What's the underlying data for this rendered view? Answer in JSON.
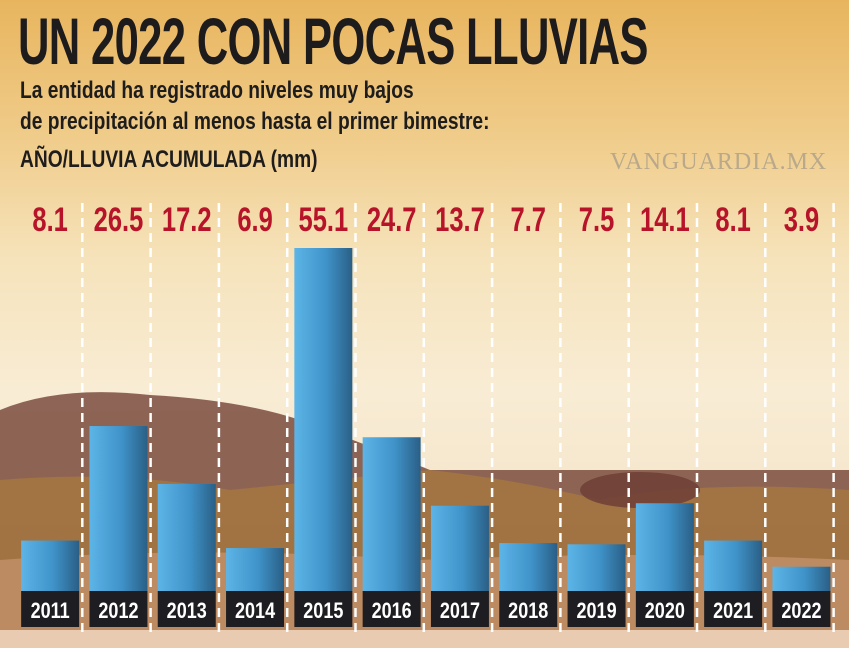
{
  "header": {
    "title": "UN 2022 CON POCAS LLUVIAS",
    "subtitle_line1": "La entidad ha registrado niveles muy bajos",
    "subtitle_line2": "de precipitación al menos hasta el primer bimestre:",
    "unit_label": "AÑO/LLUVIA ACUMULADA (mm)"
  },
  "watermark": "VANGUARDIA.MX",
  "chart_data": {
    "type": "bar",
    "title": "UN 2022 CON POCAS LLUVIAS",
    "ylabel": "AÑO/LLUVIA ACUMULADA (mm)",
    "categories": [
      "2011",
      "2012",
      "2013",
      "2014",
      "2015",
      "2016",
      "2017",
      "2018",
      "2019",
      "2020",
      "2021",
      "2022"
    ],
    "values": [
      8.1,
      26.5,
      17.2,
      6.9,
      55.1,
      24.7,
      13.7,
      7.7,
      7.5,
      14.1,
      8.1,
      3.9
    ],
    "value_labels": [
      "8.1",
      "26.5",
      "17.2",
      "6.9",
      "55.1",
      "24.7",
      "13.7",
      "7.7",
      "7.5",
      "14.1",
      "8.1",
      "3.9"
    ],
    "ylim": [
      0,
      55.1
    ],
    "grid": false,
    "colors": {
      "bar": "#4a9fd6",
      "bar_dark": "#2a5f86",
      "value": "#b7142a",
      "label_bg": "#1e1e22"
    }
  }
}
